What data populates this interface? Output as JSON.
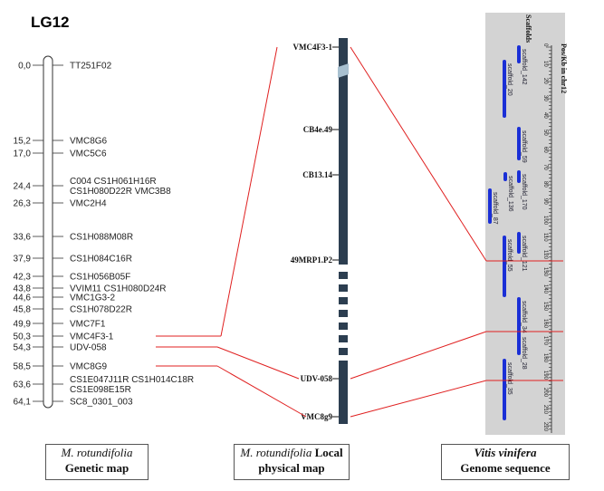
{
  "title": "LG12",
  "genetic_map": {
    "markers": [
      {
        "pos": "0,0",
        "labels": [
          "TT251F02"
        ]
      },
      {
        "pos": "15,2",
        "labels": [
          "VMC8G6"
        ]
      },
      {
        "pos": "17,0",
        "labels": [
          "VMC5C6"
        ]
      },
      {
        "pos": "24,4",
        "labels": [
          "C004 CS1H061H16R",
          "CS1H080D22R VMC3B8"
        ]
      },
      {
        "pos": "26,3",
        "labels": [
          "VMC2H4"
        ]
      },
      {
        "pos": "33,6",
        "labels": [
          "CS1H088M08R"
        ]
      },
      {
        "pos": "37,9",
        "labels": [
          "CS1H084C16R"
        ]
      },
      {
        "pos": "42,3",
        "labels": [
          "CS1H056B05F"
        ]
      },
      {
        "pos": "43,8",
        "labels": [
          "VVIM11 CS1H080D24R"
        ]
      },
      {
        "pos": "44,6",
        "labels": [
          "VMC1G3-2"
        ]
      },
      {
        "pos": "45,8",
        "labels": [
          "CS1H078D22R"
        ]
      },
      {
        "pos": "49,9",
        "labels": [
          "VMC7F1"
        ]
      },
      {
        "pos": "50,3",
        "labels": [
          "VMC4F3-1"
        ]
      },
      {
        "pos": "54,3",
        "labels": [
          "UDV-058"
        ]
      },
      {
        "pos": "58,5",
        "labels": [
          "VMC8G9"
        ]
      },
      {
        "pos": "63,6",
        "labels": [
          "CS1E047J11R CS1H014C18R",
          "CS1E098E15R"
        ]
      },
      {
        "pos": "64,1",
        "labels": [
          "SC8_0301_003"
        ]
      }
    ]
  },
  "physical_map": {
    "markers": [
      "VMC4F3-1",
      "CB4e.49",
      "CB13.14",
      "49MRP1.P2",
      "UDV-058",
      "VMC8g9"
    ]
  },
  "genome": {
    "axis_title": "Pos/Kb in chr12",
    "col_title": "Scaffolds",
    "ticks": [
      "0",
      "10",
      "20",
      "30",
      "40",
      "50",
      "60",
      "70",
      "80",
      "90",
      "100",
      "110",
      "120",
      "130",
      "140",
      "150",
      "160",
      "170",
      "180",
      "190",
      "200",
      "210",
      "220"
    ],
    "scaffolds": [
      "scaffold_142",
      "scaffold_20",
      "scaffold_59",
      "scaffold_170",
      "scaffold_136",
      "scaffold_87",
      "scaffold_121",
      "scaffold_55",
      "scaffold_34",
      "scaffold_28",
      "scaffold_35"
    ]
  },
  "captions": {
    "genetic": {
      "line1": "M. rotundifolia",
      "line2": "Genetic map"
    },
    "physical": {
      "line1": "M. rotundifolia",
      "line1b": " Local",
      "line2": "physical map"
    },
    "genome": {
      "line1": "Vitis vinifera",
      "line2": "Genome sequence"
    }
  },
  "colors": {
    "links": "#e02020",
    "chromosome": "#2c3e50",
    "scaffold": "#1a2fd6",
    "panel": "#d3d3d3"
  }
}
